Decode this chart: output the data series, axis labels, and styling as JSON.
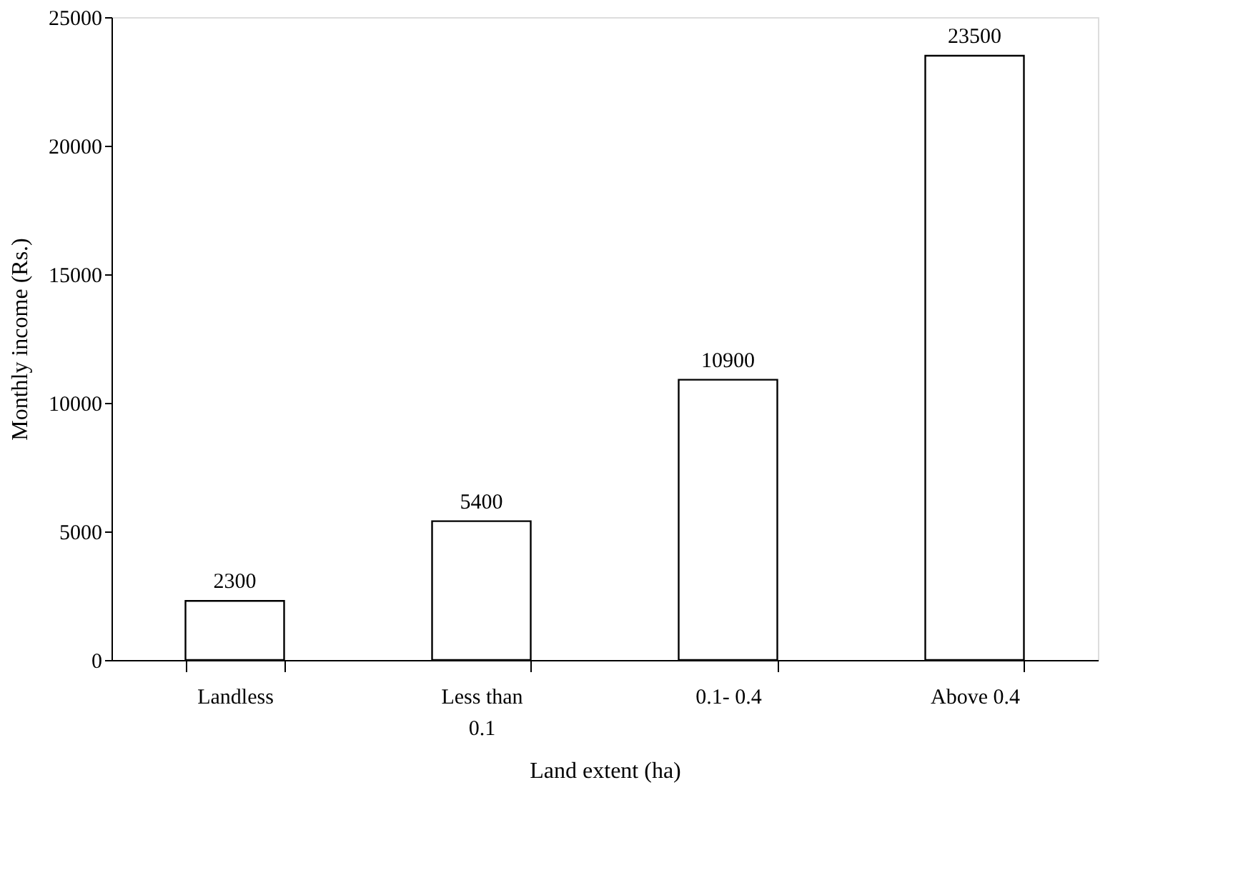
{
  "chart_data": {
    "type": "bar",
    "categories": [
      "Landless",
      "Less than 0.1",
      "0.1- 0.4",
      "Above 0.4"
    ],
    "values": [
      2300,
      5400,
      10900,
      23500
    ],
    "color": "#ffffff",
    "xlabel": "Land extent (ha)",
    "ylabel": "Monthly income (Rs.)",
    "ylim": [
      0,
      25000
    ],
    "yticks": [
      0,
      5000,
      10000,
      15000,
      20000,
      25000
    ],
    "data_labels": true,
    "grid": false
  }
}
